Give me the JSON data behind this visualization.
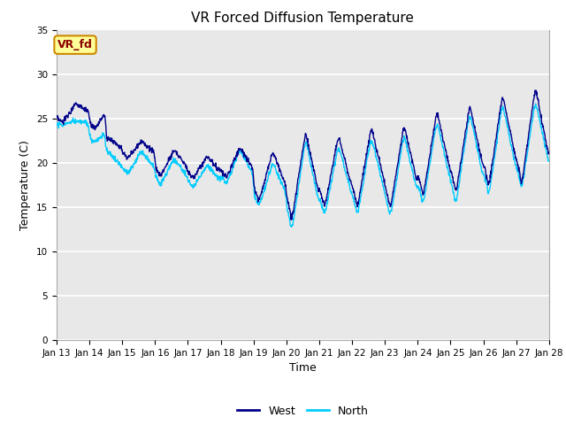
{
  "title": "VR Forced Diffusion Temperature",
  "xlabel": "Time",
  "ylabel": "Temperature (C)",
  "ylim": [
    0,
    35
  ],
  "xlim": [
    0,
    360
  ],
  "xtick_labels": [
    "Jan 13",
    "Jan 14",
    "Jan 15",
    "Jan 16",
    "Jan 17",
    "Jan 18",
    "Jan 19",
    "Jan 20",
    "Jan 21",
    "Jan 22",
    "Jan 23",
    "Jan 24",
    "Jan 25",
    "Jan 26",
    "Jan 27",
    "Jan 28"
  ],
  "xtick_positions": [
    0,
    24,
    48,
    72,
    96,
    120,
    144,
    168,
    192,
    216,
    240,
    264,
    288,
    312,
    336,
    360
  ],
  "west_color": "#00008B",
  "north_color": "#00CCFF",
  "annotation_text": "VR_fd",
  "annotation_bg": "#FFFF99",
  "annotation_border": "#CC8800",
  "plot_bg": "#E8E8E8",
  "grid_color": "#FFFFFF",
  "legend_west": "West",
  "legend_north": "North",
  "title_fontsize": 11,
  "axis_fontsize": 9,
  "tick_fontsize": 7.5
}
